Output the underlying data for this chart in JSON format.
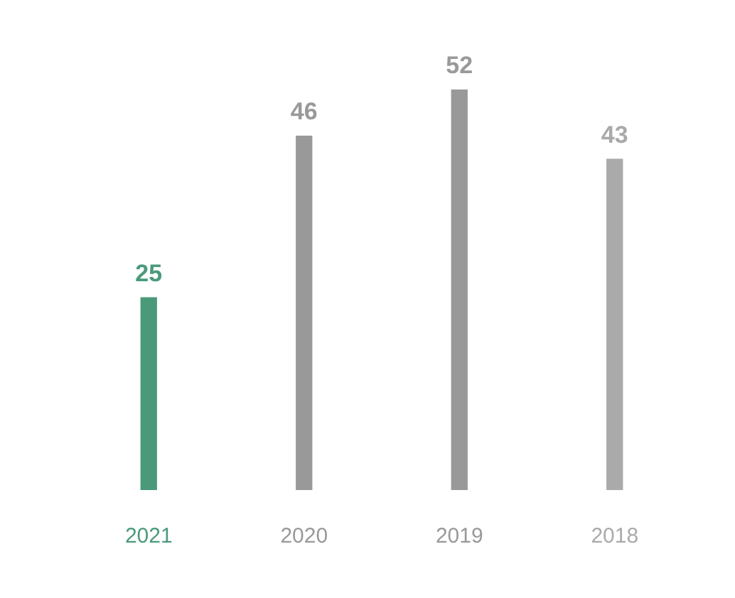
{
  "chart_data": {
    "type": "bar",
    "categories": [
      "2021",
      "2020",
      "2019",
      "2018"
    ],
    "values": [
      25,
      46,
      52,
      43
    ],
    "colors": [
      "#4a9a7a",
      "#999999",
      "#999999",
      "#aaaaaa"
    ],
    "data_labels": true,
    "grid": false,
    "legend": false
  }
}
